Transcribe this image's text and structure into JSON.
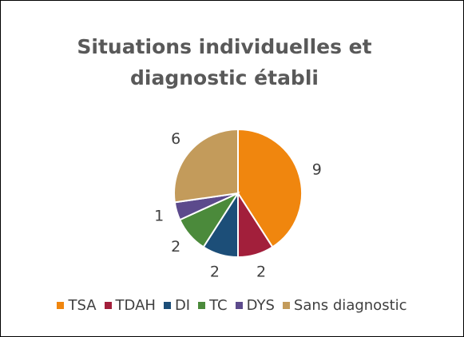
{
  "chart_data": {
    "type": "pie",
    "title": "Situations individuelles et diagnostic établi",
    "categories": [
      "TSA",
      "TDAH",
      "DI",
      "TC",
      "DYS",
      "Sans diagnostic"
    ],
    "values": [
      9,
      2,
      2,
      2,
      1,
      6
    ],
    "colors": [
      "#f0860e",
      "#a21f3b",
      "#1c4e78",
      "#4b8a3b",
      "#5c4a8c",
      "#c39b5b"
    ],
    "legend": "bottom"
  }
}
